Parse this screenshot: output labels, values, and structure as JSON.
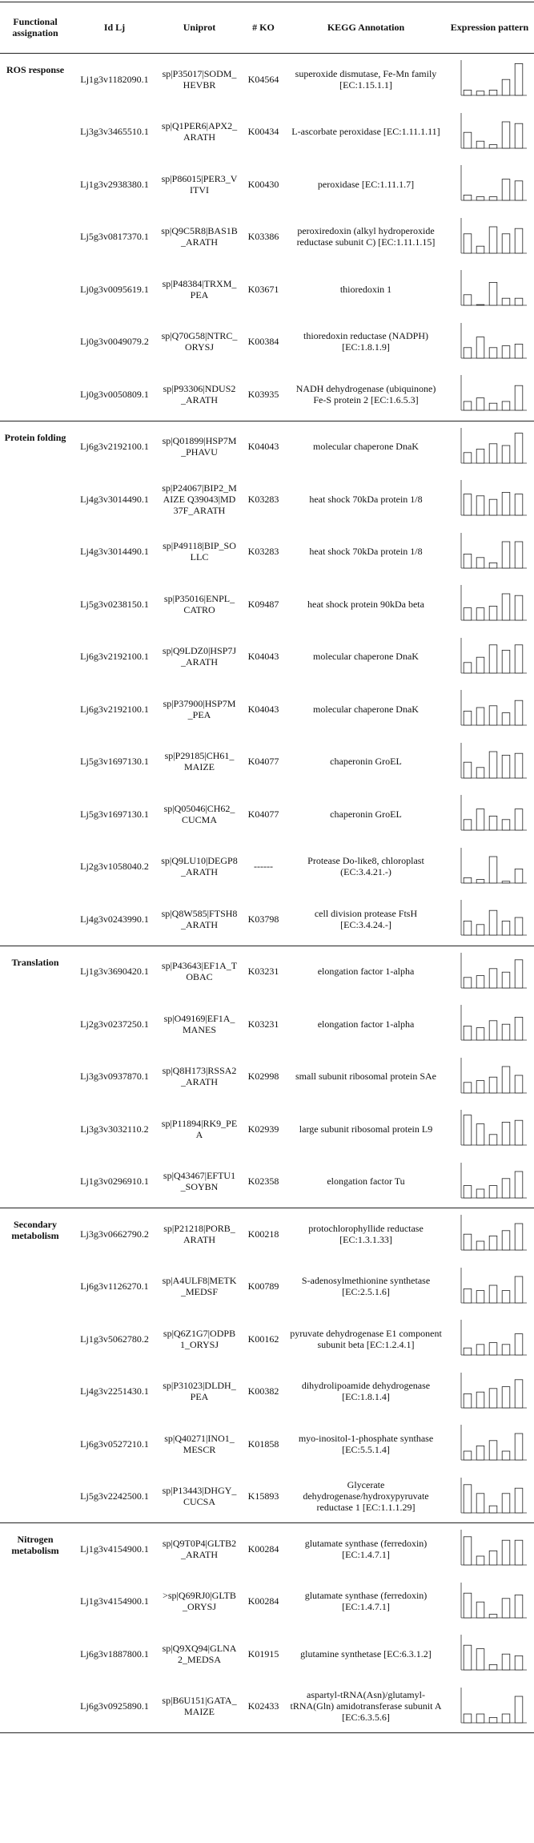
{
  "header": {
    "columns": [
      "Functional assignation",
      "Id Lj",
      "Uniprot",
      "# KO",
      "KEGG Annotation",
      "Expression pattern"
    ]
  },
  "sections": [
    {
      "name": "ROS response",
      "rows": [
        {
          "id": "Lj1g3v1182090.1",
          "uniprot": "sp|P35017|SODM_HEVBR",
          "ko": "K04564",
          "kegg": "superoxide dismutase, Fe-Mn family [EC:1.15.1.1]",
          "expression": [
            0.15,
            0.12,
            0.15,
            0.45,
            0.9
          ]
        },
        {
          "id": "Lj3g3v3465510.1",
          "uniprot": "sp|Q1PER6|APX2_ARATH",
          "ko": "K00434",
          "kegg": "L-ascorbate peroxidase [EC:1.11.1.11]",
          "expression": [
            0.45,
            0.2,
            0.1,
            0.75,
            0.7
          ]
        },
        {
          "id": "Lj1g3v2938380.1",
          "uniprot": "sp|P86015|PER3_VITVI",
          "ko": "K00430",
          "kegg": "peroxidase [EC:1.11.1.7]",
          "expression": [
            0.15,
            0.1,
            0.1,
            0.6,
            0.55
          ]
        },
        {
          "id": "Lj5g3v0817370.1",
          "uniprot": "sp|Q9C5R8|BAS1B_ARATH",
          "ko": "K03386",
          "kegg": "peroxiredoxin (alkyl hydroperoxide reductase subunit C) [EC:1.11.1.15]",
          "expression": [
            0.55,
            0.2,
            0.75,
            0.55,
            0.7
          ]
        },
        {
          "id": "Lj0g3v0095619.1",
          "uniprot": "sp|P48384|TRXM_PEA",
          "ko": "K03671",
          "kegg": "thioredoxin 1",
          "expression": [
            0.3,
            0.02,
            0.65,
            0.2,
            0.2
          ]
        },
        {
          "id": "Lj0g3v0049079.2",
          "uniprot": "sp|Q70G58|NTRC_ORYSJ",
          "ko": "K00384",
          "kegg": "thioredoxin reductase (NADPH) [EC:1.8.1.9]",
          "expression": [
            0.3,
            0.6,
            0.3,
            0.35,
            0.4
          ]
        },
        {
          "id": "Lj0g3v0050809.1",
          "uniprot": "sp|P93306|NDUS2_ARATH",
          "ko": "K03935",
          "kegg": "NADH dehydrogenase (ubiquinone) Fe-S protein 2 [EC:1.6.5.3]",
          "expression": [
            0.25,
            0.35,
            0.2,
            0.25,
            0.7
          ]
        }
      ]
    },
    {
      "name": "Protein folding",
      "rows": [
        {
          "id": "Lj6g3v2192100.1",
          "uniprot": "sp|Q01899|HSP7M_PHAVU",
          "ko": "K04043",
          "kegg": "molecular chaperone DnaK",
          "expression": [
            0.3,
            0.4,
            0.55,
            0.5,
            0.85
          ]
        },
        {
          "id": "Lj4g3v3014490.1",
          "uniprot": "sp|P24067|BIP2_MAIZE Q39043|MD37F_ARATH",
          "ko": "K03283",
          "kegg": "heat shock 70kDa protein 1/8",
          "expression": [
            0.6,
            0.55,
            0.45,
            0.65,
            0.6
          ]
        },
        {
          "id": "Lj4g3v3014490.1",
          "uniprot": "sp|P49118|BIP_SOLLC",
          "ko": "K03283",
          "kegg": "heat shock 70kDa protein 1/8",
          "expression": [
            0.4,
            0.3,
            0.15,
            0.75,
            0.75
          ]
        },
        {
          "id": "Lj5g3v0238150.1",
          "uniprot": "sp|P35016|ENPL_CATRO",
          "ko": "K09487",
          "kegg": "heat shock protein 90kDa beta",
          "expression": [
            0.35,
            0.35,
            0.4,
            0.75,
            0.7
          ]
        },
        {
          "id": "Lj6g3v2192100.1",
          "uniprot": "sp|Q9LDZ0|HSP7J_ARATH",
          "ko": "K04043",
          "kegg": "molecular chaperone DnaK",
          "expression": [
            0.3,
            0.45,
            0.8,
            0.65,
            0.8
          ]
        },
        {
          "id": "Lj6g3v2192100.1",
          "uniprot": "sp|P37900|HSP7M_PEA",
          "ko": "K04043",
          "kegg": "molecular chaperone DnaK",
          "expression": [
            0.4,
            0.5,
            0.55,
            0.35,
            0.7
          ]
        },
        {
          "id": "Lj5g3v1697130.1",
          "uniprot": "sp|P29185|CH61_MAIZE",
          "ko": "K04077",
          "kegg": "chaperonin GroEL",
          "expression": [
            0.45,
            0.3,
            0.75,
            0.65,
            0.7
          ]
        },
        {
          "id": "Lj5g3v1697130.1",
          "uniprot": "sp|Q05046|CH62_CUCMA",
          "ko": "K04077",
          "kegg": "chaperonin GroEL",
          "expression": [
            0.3,
            0.6,
            0.4,
            0.3,
            0.6
          ]
        },
        {
          "id": "Lj2g3v1058040.2",
          "uniprot": "sp|Q9LU10|DEGP8_ARATH",
          "ko": "------",
          "kegg": "Protease Do-like8, chloroplast (EC:3.4.21.-)",
          "expression": [
            0.15,
            0.1,
            0.75,
            0.05,
            0.4
          ]
        },
        {
          "id": "Lj4g3v0243990.1",
          "uniprot": "sp|Q8W585|FTSH8_ARATH",
          "ko": "K03798",
          "kegg": "cell division protease FtsH [EC:3.4.24.-]",
          "expression": [
            0.4,
            0.3,
            0.7,
            0.4,
            0.5
          ]
        }
      ]
    },
    {
      "name": "Translation",
      "rows": [
        {
          "id": "Lj1g3v3690420.1",
          "uniprot": "sp|P43643|EF1A_TOBAC",
          "ko": "K03231",
          "kegg": "elongation factor 1-alpha",
          "expression": [
            0.3,
            0.35,
            0.55,
            0.45,
            0.8
          ]
        },
        {
          "id": "Lj2g3v0237250.1",
          "uniprot": "sp|O49169|EF1A_MANES",
          "ko": "K03231",
          "kegg": "elongation factor 1-alpha",
          "expression": [
            0.4,
            0.35,
            0.55,
            0.45,
            0.65
          ]
        },
        {
          "id": "Lj3g3v0937870.1",
          "uniprot": "sp|Q8H173|RSSA2_ARATH",
          "ko": "K02998",
          "kegg": "small subunit ribosomal protein SAe",
          "expression": [
            0.3,
            0.35,
            0.45,
            0.75,
            0.5
          ]
        },
        {
          "id": "Lj3g3v3032110.2",
          "uniprot": "sp|P11894|RK9_PEA",
          "ko": "K02939",
          "kegg": "large subunit ribosomal protein L9",
          "expression": [
            0.85,
            0.6,
            0.3,
            0.65,
            0.7
          ]
        },
        {
          "id": "Lj1g3v0296910.1",
          "uniprot": "sp|Q43467|EFTU1_SOYBN",
          "ko": "K02358",
          "kegg": "elongation factor Tu",
          "expression": [
            0.35,
            0.25,
            0.35,
            0.55,
            0.75
          ]
        }
      ]
    },
    {
      "name": "Secondary metabolism",
      "rows": [
        {
          "id": "Lj3g3v0662790.2",
          "uniprot": "sp|P21218|PORB_ARATH",
          "ko": "K00218",
          "kegg": "protochlorophyllide reductase [EC:1.3.1.33]",
          "expression": [
            0.45,
            0.25,
            0.4,
            0.55,
            0.75
          ]
        },
        {
          "id": "Lj6g3v1126270.1",
          "uniprot": "sp|A4ULF8|METK_MEDSF",
          "ko": "K00789",
          "kegg": "S-adenosylmethionine synthetase [EC:2.5.1.6]",
          "expression": [
            0.4,
            0.35,
            0.5,
            0.35,
            0.75
          ]
        },
        {
          "id": "Lj1g3v5062780.2",
          "uniprot": "sp|Q6Z1G7|ODPB1_ORYSJ",
          "ko": "K00162",
          "kegg": "pyruvate dehydrogenase E1 component subunit beta [EC:1.2.4.1]",
          "expression": [
            0.2,
            0.3,
            0.35,
            0.3,
            0.6
          ]
        },
        {
          "id": "Lj4g3v2251430.1",
          "uniprot": "sp|P31023|DLDH_PEA",
          "ko": "K00382",
          "kegg": "dihydrolipoamide dehydrogenase [EC:1.8.1.4]",
          "expression": [
            0.4,
            0.45,
            0.55,
            0.6,
            0.8
          ]
        },
        {
          "id": "Lj6g3v0527210.1",
          "uniprot": "sp|Q40271|INO1_MESCR",
          "ko": "K01858",
          "kegg": "myo-inositol-1-phosphate synthase [EC:5.5.1.4]",
          "expression": [
            0.25,
            0.4,
            0.55,
            0.25,
            0.75
          ]
        },
        {
          "id": "Lj5g3v2242500.1",
          "uniprot": "sp|P13443|DHGY_CUCSA",
          "ko": "K15893",
          "kegg": "Glycerate dehydrogenase/hydroxypyruvate reductase 1 [EC:1.1.1.29]",
          "expression": [
            0.8,
            0.55,
            0.2,
            0.55,
            0.7
          ]
        }
      ]
    },
    {
      "name": "Nitrogen metabolism",
      "rows": [
        {
          "id": "Lj1g3v4154900.1",
          "uniprot": "sp|Q9T0P4|GLTB2_ARATH",
          "ko": "K00284",
          "kegg": "glutamate synthase (ferredoxin) [EC:1.4.7.1]",
          "expression": [
            0.8,
            0.25,
            0.4,
            0.7,
            0.7
          ]
        },
        {
          "id": "Lj1g3v4154900.1",
          "uniprot": ">sp|Q69RJ0|GLTB_ORYSJ",
          "ko": "K00284",
          "kegg": "glutamate synthase (ferredoxin) [EC:1.4.7.1]",
          "expression": [
            0.7,
            0.45,
            0.1,
            0.55,
            0.65
          ]
        },
        {
          "id": "Lj6g3v1887800.1",
          "uniprot": "sp|Q9XQ94|GLNA2_MEDSA",
          "ko": "K01915",
          "kegg": "glutamine synthetase [EC:6.3.1.2]",
          "expression": [
            0.7,
            0.6,
            0.15,
            0.45,
            0.4
          ]
        },
        {
          "id": "Lj6g3v0925890.1",
          "uniprot": "sp|B6U151|GATA_MAIZE",
          "ko": "K02433",
          "kegg": "aspartyl-tRNA(Asn)/glutamyl-tRNA(Gln) amidotransferase subunit A [EC:6.3.5.6]",
          "expression": [
            0.25,
            0.25,
            0.15,
            0.25,
            0.75
          ]
        }
      ]
    }
  ]
}
